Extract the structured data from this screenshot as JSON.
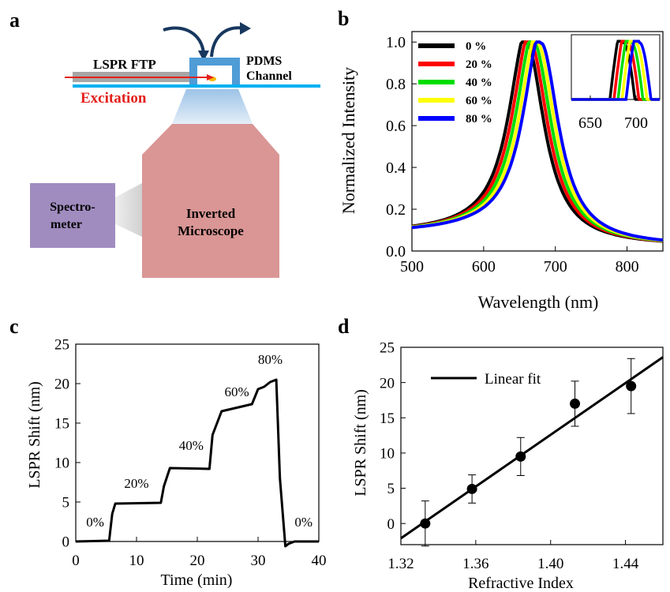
{
  "panels": {
    "a": {
      "letter": "a",
      "labels": {
        "lspr_ftp": "LSPR FTP",
        "pdms": "PDMS",
        "channel": "Channel",
        "excitation": "Excitation",
        "spectrometer_1": "Spectro-",
        "spectrometer_2": "meter",
        "microscope_1": "Inverted",
        "microscope_2": "Microscope"
      },
      "colors": {
        "microscope": "#d99694",
        "spectrometer": "#a08cbf",
        "glass": "#00b0f0",
        "pdms": "#4f9cd6",
        "arrow": "#17375e",
        "excitation": "#e3201b",
        "fiber": "#a6a6a6"
      }
    },
    "b": {
      "letter": "b"
    },
    "c": {
      "letter": "c"
    },
    "d": {
      "letter": "d"
    }
  },
  "chart_data": [
    {
      "panel": "b",
      "type": "line",
      "xlabel": "Wavelength (nm)",
      "ylabel": "Normalized Intensity",
      "xlim": [
        500,
        850
      ],
      "ylim": [
        0,
        1.05
      ],
      "xticks": [
        "500",
        "600",
        "700",
        "800"
      ],
      "yticks": [
        "0.0",
        "0.2",
        "0.4",
        "0.6",
        "0.8",
        "1.0"
      ],
      "legend_position": "top-left",
      "series": [
        {
          "name": "0 %",
          "color": "#000000",
          "peak": 660
        },
        {
          "name": "20 %",
          "color": "#ff0000",
          "peak": 665
        },
        {
          "name": "40 %",
          "color": "#00dd00",
          "peak": 670
        },
        {
          "name": "60 %",
          "color": "#ffff00",
          "peak": 675
        },
        {
          "name": "80 %",
          "color": "#0000ff",
          "peak": 680
        }
      ],
      "inset": {
        "xticks": [
          "650",
          "700"
        ],
        "xlim": [
          610,
          720
        ],
        "ylim": [
          0.82,
          1.02
        ]
      }
    },
    {
      "panel": "c",
      "type": "line",
      "xlabel": "Time (min)",
      "ylabel": "LSPR Shift (nm)",
      "xlim": [
        0,
        40
      ],
      "ylim": [
        0,
        25
      ],
      "xticks": [
        "0",
        "10",
        "20",
        "30",
        "40"
      ],
      "yticks": [
        "0",
        "5",
        "10",
        "15",
        "20",
        "25"
      ],
      "x": [
        0,
        5.5,
        6,
        6.5,
        14,
        14.5,
        15.5,
        22,
        22.5,
        24,
        29,
        30,
        31,
        32,
        33,
        33.6,
        34.5,
        35,
        36,
        40
      ],
      "y": [
        0,
        0.1,
        3.5,
        4.8,
        4.9,
        7,
        9.3,
        9.2,
        13.5,
        16.5,
        17.4,
        19.3,
        19.6,
        20.2,
        20.5,
        8,
        -0.6,
        -0.3,
        0,
        0
      ],
      "annotations": [
        {
          "text": "0%",
          "x": 3.2,
          "y": 1.9
        },
        {
          "text": "20%",
          "x": 10,
          "y": 6.8
        },
        {
          "text": "40%",
          "x": 19,
          "y": 11.6
        },
        {
          "text": "60%",
          "x": 26.5,
          "y": 18.4
        },
        {
          "text": "80%",
          "x": 32,
          "y": 22.5
        },
        {
          "text": "0%",
          "x": 37.5,
          "y": 1.9
        }
      ]
    },
    {
      "panel": "d",
      "type": "scatter",
      "xlabel": "Refractive Index",
      "ylabel": "LSPR Shift (nm)",
      "xlim": [
        1.32,
        1.46
      ],
      "ylim": [
        -3,
        25
      ],
      "xticks": [
        "1.32",
        "1.36",
        "1.40",
        "1.44"
      ],
      "yticks": [
        "0",
        "5",
        "10",
        "15",
        "20",
        "25"
      ],
      "points": [
        {
          "x": 1.333,
          "y": 0,
          "err": 3.2
        },
        {
          "x": 1.358,
          "y": 4.9,
          "err": 2.0
        },
        {
          "x": 1.384,
          "y": 9.5,
          "err": 2.7
        },
        {
          "x": 1.413,
          "y": 17.0,
          "err": 3.2
        },
        {
          "x": 1.443,
          "y": 19.5,
          "err": 3.9
        }
      ],
      "fit": {
        "name": "Linear fit",
        "x": [
          1.32,
          1.46
        ],
        "y": [
          -2.1,
          23.6
        ]
      },
      "legend_position": "top-left"
    }
  ]
}
